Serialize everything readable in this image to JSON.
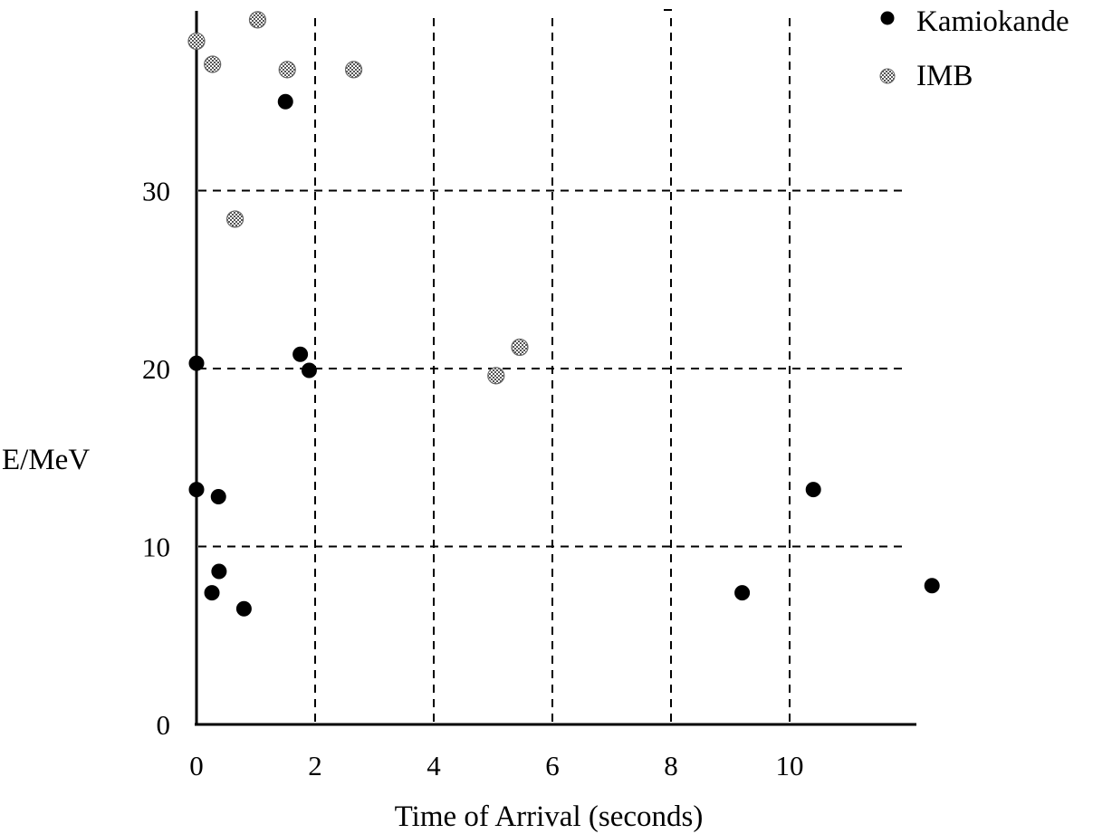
{
  "chart_data": {
    "type": "scatter",
    "title": "",
    "xlabel": "Time of Arrival (seconds)",
    "ylabel": "E/MeV",
    "xlim": [
      0,
      12
    ],
    "ylim": [
      0,
      40
    ],
    "x_ticks": [
      0,
      2,
      4,
      6,
      8,
      10
    ],
    "x_tick_labels": [
      "0",
      "2",
      "4",
      "6",
      "8",
      "10"
    ],
    "y_ticks": [
      0,
      10,
      20,
      30
    ],
    "y_tick_labels": [
      "0",
      "10",
      "20",
      "30"
    ],
    "grid": "dashed lines at x = 2, 4, 6, 8, 10 and y = 10, 20, 30",
    "legend_position": "top-right",
    "series": [
      {
        "name": "Kamiokande",
        "marker": "solid",
        "color": "#000000",
        "points": [
          {
            "x": 0.0,
            "y": 20.3
          },
          {
            "x": 0.0,
            "y": 13.2
          },
          {
            "x": 0.37,
            "y": 12.8
          },
          {
            "x": 0.38,
            "y": 8.6
          },
          {
            "x": 0.26,
            "y": 7.4
          },
          {
            "x": 0.8,
            "y": 6.5
          },
          {
            "x": 1.5,
            "y": 35.0
          },
          {
            "x": 1.75,
            "y": 20.8
          },
          {
            "x": 1.9,
            "y": 19.9
          },
          {
            "x": 9.2,
            "y": 7.4
          },
          {
            "x": 10.4,
            "y": 13.2
          },
          {
            "x": 12.4,
            "y": 7.8
          }
        ]
      },
      {
        "name": "IMB",
        "marker": "stippled",
        "color": "#888888",
        "points": [
          {
            "x": 0.0,
            "y": 38.4
          },
          {
            "x": 0.27,
            "y": 37.1
          },
          {
            "x": 1.03,
            "y": 39.6
          },
          {
            "x": 1.53,
            "y": 36.8
          },
          {
            "x": 2.65,
            "y": 36.8
          },
          {
            "x": 0.65,
            "y": 28.4
          },
          {
            "x": 5.05,
            "y": 19.6
          },
          {
            "x": 5.45,
            "y": 21.2
          }
        ]
      }
    ]
  }
}
